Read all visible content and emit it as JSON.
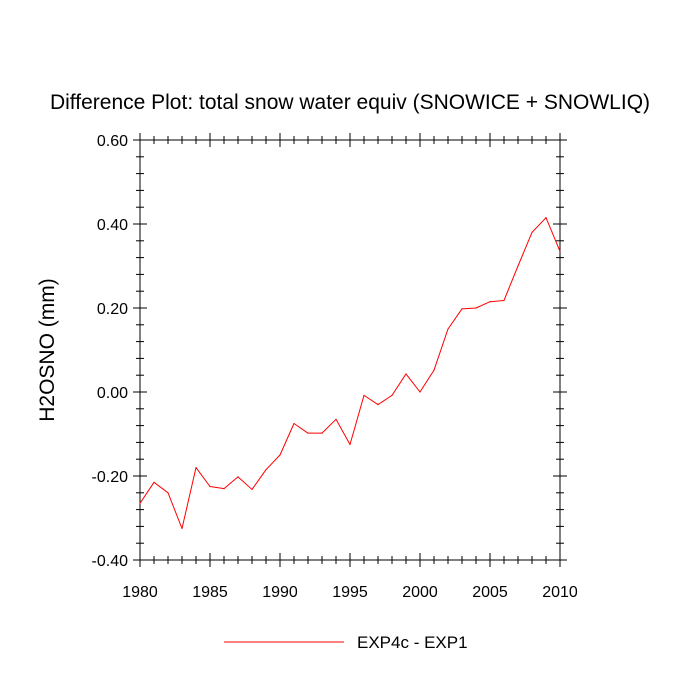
{
  "chart_data": {
    "type": "line",
    "title": "Difference Plot: total snow water equiv (SNOWICE + SNOWLIQ)",
    "xlabel": "",
    "ylabel": "H2OSNO  (mm)",
    "xlim": [
      1980,
      2010
    ],
    "ylim": [
      -0.4,
      0.6
    ],
    "x_ticks": [
      1980,
      1985,
      1990,
      1995,
      2000,
      2005,
      2010
    ],
    "x_tick_labels": [
      "1980",
      "1985",
      "1990",
      "1995",
      "2000",
      "2005",
      "2010"
    ],
    "y_ticks": [
      -0.4,
      -0.2,
      0.0,
      0.2,
      0.4,
      0.6
    ],
    "y_tick_labels": [
      "-0.40",
      "-0.20",
      "0.00",
      "0.20",
      "0.40",
      "0.60"
    ],
    "grid": false,
    "legend_position": "bottom-center",
    "series": [
      {
        "name": "EXP4c - EXP1",
        "color": "#ff0000",
        "x": [
          1980,
          1981,
          1982,
          1983,
          1984,
          1985,
          1986,
          1987,
          1988,
          1989,
          1990,
          1991,
          1992,
          1993,
          1994,
          1995,
          1996,
          1997,
          1998,
          1999,
          2000,
          2001,
          2002,
          2003,
          2004,
          2005,
          2006,
          2007,
          2008,
          2009,
          2010
        ],
        "values": [
          -0.265,
          -0.215,
          -0.24,
          -0.325,
          -0.18,
          -0.225,
          -0.23,
          -0.202,
          -0.232,
          -0.185,
          -0.15,
          -0.075,
          -0.098,
          -0.098,
          -0.065,
          -0.125,
          -0.008,
          -0.03,
          -0.008,
          0.043,
          0.0,
          0.052,
          0.15,
          0.198,
          0.2,
          0.215,
          0.218,
          0.3,
          0.38,
          0.415,
          0.335
        ]
      }
    ]
  }
}
